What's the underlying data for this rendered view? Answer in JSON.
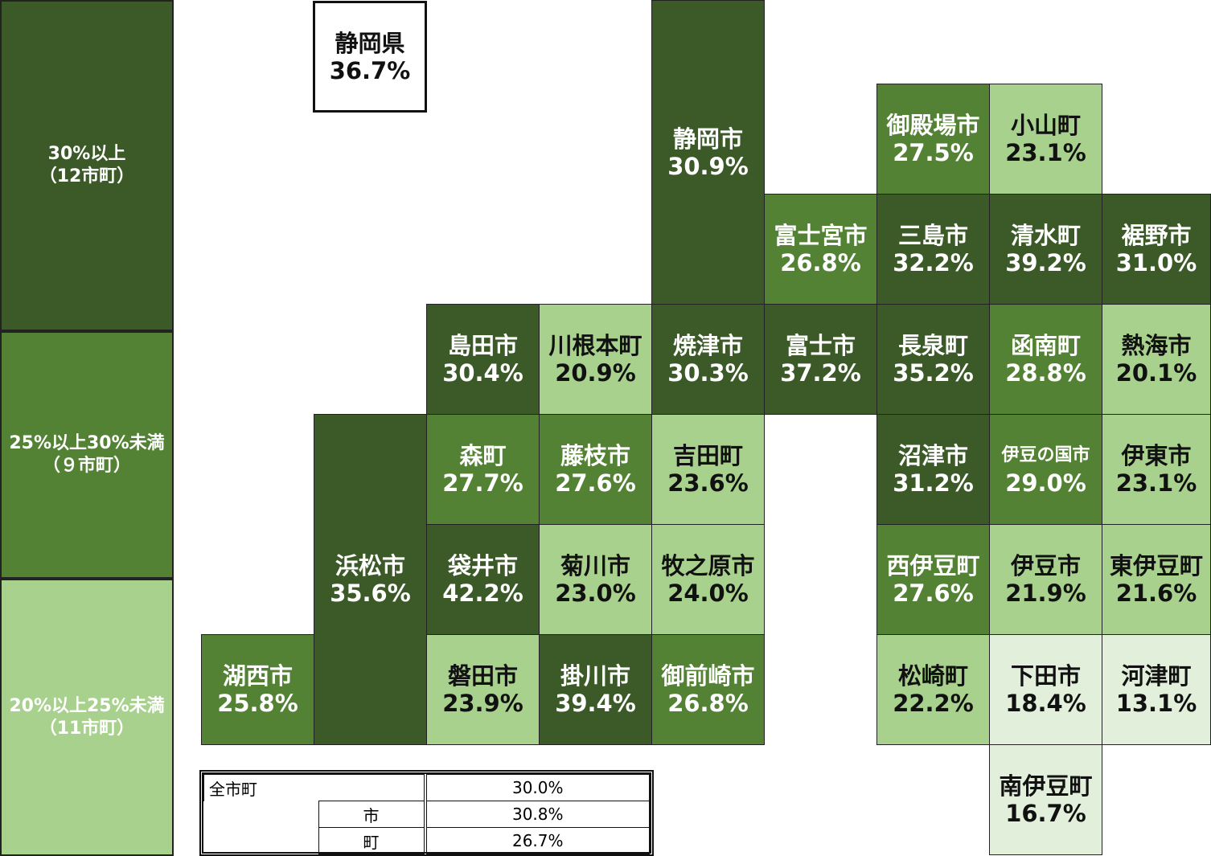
{
  "legend": [
    {
      "label": "30%以上",
      "count": "（12市町）",
      "color": "#3b5a28"
    },
    {
      "label": "25%以上30%未満",
      "count": "（９市町）",
      "color": "#548235"
    },
    {
      "label": "20%以上25%未満",
      "count": "（11市町）",
      "color": "#a9d18e"
    }
  ],
  "prefecture": {
    "name": "静岡県",
    "value": "36.7%"
  },
  "tiles": [
    {
      "name": "静岡市",
      "value": "30.9%",
      "color": "#3b5a28"
    },
    {
      "name": "御殿場市",
      "value": "27.5%",
      "color": "#548235"
    },
    {
      "name": "小山町",
      "value": "23.1%",
      "color": "#a9d18e"
    },
    {
      "name": "富士宮市",
      "value": "26.8%",
      "color": "#548235"
    },
    {
      "name": "三島市",
      "value": "32.2%",
      "color": "#3b5a28"
    },
    {
      "name": "清水町",
      "value": "39.2%",
      "color": "#3b5a28"
    },
    {
      "name": "裾野市",
      "value": "31.0%",
      "color": "#3b5a28"
    },
    {
      "name": "島田市",
      "value": "30.4%",
      "color": "#3b5a28"
    },
    {
      "name": "川根本町",
      "value": "20.9%",
      "color": "#a9d18e"
    },
    {
      "name": "焼津市",
      "value": "30.3%",
      "color": "#3b5a28"
    },
    {
      "name": "富士市",
      "value": "37.2%",
      "color": "#3b5a28"
    },
    {
      "name": "長泉町",
      "value": "35.2%",
      "color": "#3b5a28"
    },
    {
      "name": "函南町",
      "value": "28.8%",
      "color": "#548235"
    },
    {
      "name": "熱海市",
      "value": "20.1%",
      "color": "#a9d18e"
    },
    {
      "name": "浜松市",
      "value": "35.6%",
      "color": "#3b5a28"
    },
    {
      "name": "森町",
      "value": "27.7%",
      "color": "#548235"
    },
    {
      "name": "藤枝市",
      "value": "27.6%",
      "color": "#548235"
    },
    {
      "name": "吉田町",
      "value": "23.6%",
      "color": "#a9d18e"
    },
    {
      "name": "沼津市",
      "value": "31.2%",
      "color": "#3b5a28"
    },
    {
      "name": "伊豆の国市",
      "value": "29.0%",
      "color": "#548235"
    },
    {
      "name": "伊東市",
      "value": "23.1%",
      "color": "#a9d18e"
    },
    {
      "name": "袋井市",
      "value": "42.2%",
      "color": "#3b5a28"
    },
    {
      "name": "菊川市",
      "value": "23.0%",
      "color": "#a9d18e"
    },
    {
      "name": "牧之原市",
      "value": "24.0%",
      "color": "#a9d18e"
    },
    {
      "name": "西伊豆町",
      "value": "27.6%",
      "color": "#548235"
    },
    {
      "name": "伊豆市",
      "value": "21.9%",
      "color": "#a9d18e"
    },
    {
      "name": "東伊豆町",
      "value": "21.6%",
      "color": "#a9d18e"
    },
    {
      "name": "湖西市",
      "value": "25.8%",
      "color": "#548235"
    },
    {
      "name": "磐田市",
      "value": "23.9%",
      "color": "#a9d18e"
    },
    {
      "name": "掛川市",
      "value": "39.4%",
      "color": "#3b5a28"
    },
    {
      "name": "御前崎市",
      "value": "26.8%",
      "color": "#548235"
    },
    {
      "name": "松崎町",
      "value": "22.2%",
      "color": "#a9d18e"
    },
    {
      "name": "下田市",
      "value": "18.4%",
      "color": "#e2efda"
    },
    {
      "name": "河津町",
      "value": "13.1%",
      "color": "#e2efda"
    },
    {
      "name": "南伊豆町",
      "value": "16.7%",
      "color": "#e2efda"
    }
  ],
  "summary": [
    {
      "label": "全市町",
      "value": "30.0%"
    },
    {
      "label": "市",
      "value": "30.8%"
    },
    {
      "label": "町",
      "value": "26.7%"
    }
  ]
}
